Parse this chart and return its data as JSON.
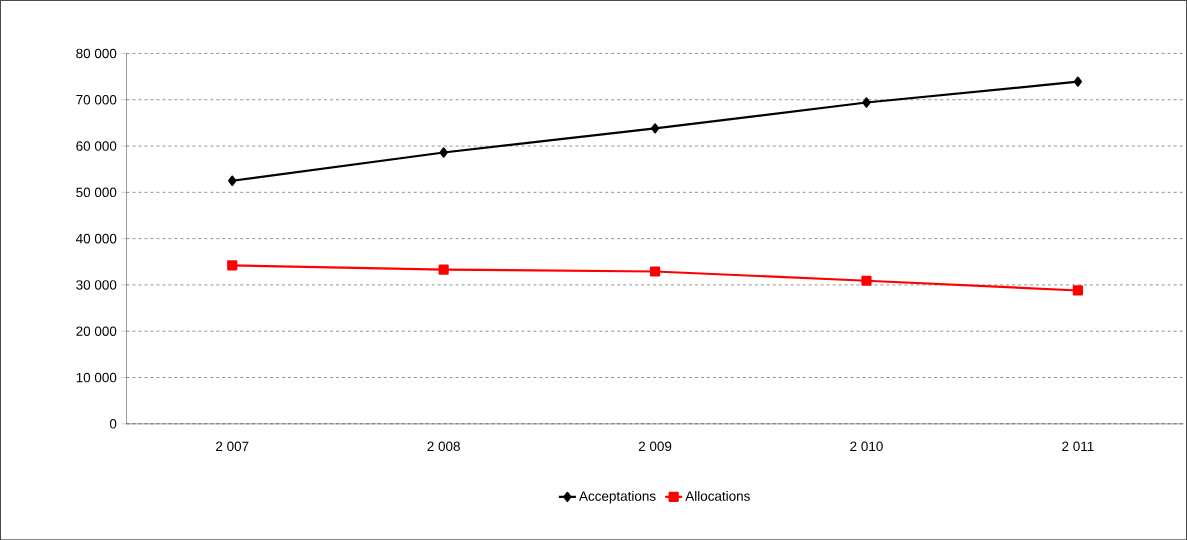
{
  "chart_data": {
    "type": "line",
    "categories": [
      "2 007",
      "2 008",
      "2 009",
      "2 010",
      "2 011"
    ],
    "series": [
      {
        "name": "Acceptations",
        "color": "#000000",
        "marker": "diamond",
        "values": [
          52500,
          58600,
          63800,
          69400,
          73900
        ]
      },
      {
        "name": "Allocations",
        "color": "#ff0000",
        "marker": "square",
        "values": [
          34200,
          33300,
          32900,
          30900,
          28800
        ]
      }
    ],
    "ylim": [
      0,
      80000
    ],
    "yticks": [
      0,
      {
        "value": 10000,
        "label": "10 000"
      },
      {
        "value": 20000,
        "label": "20 000"
      },
      {
        "value": 30000,
        "label": "30 000"
      },
      {
        "value": 40000,
        "label": "40 000"
      },
      {
        "value": 50000,
        "label": "50 000"
      },
      {
        "value": 60000,
        "label": "60 000"
      },
      {
        "value": 70000,
        "label": "70 000"
      },
      {
        "value": 80000,
        "label": "80 000"
      }
    ],
    "grid": "y",
    "legend": "bottom",
    "line_style": "solid"
  }
}
